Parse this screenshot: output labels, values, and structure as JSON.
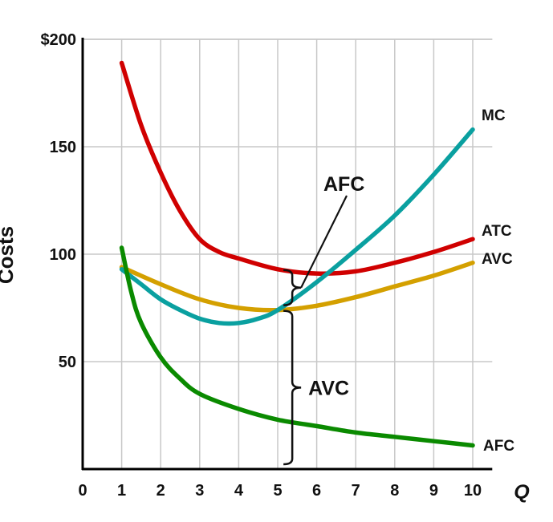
{
  "chart_data": {
    "type": "line",
    "title": "",
    "xlabel": "Q",
    "ylabel": "Costs",
    "xlim": [
      0,
      10.5
    ],
    "ylim": [
      0,
      200
    ],
    "grid": true,
    "x_ticks": [
      0,
      1,
      2,
      3,
      4,
      5,
      6,
      7,
      8,
      9,
      10
    ],
    "x_tick_labels": [
      "0",
      "1",
      "2",
      "3",
      "4",
      "5",
      "6",
      "7",
      "8",
      "9",
      "10"
    ],
    "y_ticks": [
      50,
      100,
      150,
      200
    ],
    "y_tick_labels": [
      "50",
      "100",
      "150",
      "$200"
    ],
    "series": [
      {
        "name": "ATC",
        "color": "#d00000",
        "x": [
          1,
          1.5,
          2,
          2.5,
          3,
          3.5,
          4,
          5,
          6,
          7,
          8,
          9,
          10
        ],
        "y": [
          189,
          160,
          138,
          120,
          107,
          101,
          98,
          93,
          91,
          92,
          96,
          101,
          107
        ]
      },
      {
        "name": "AVC",
        "color": "#d4a000",
        "x": [
          1,
          2,
          3,
          4,
          5,
          6,
          7,
          8,
          9,
          10
        ],
        "y": [
          94,
          86,
          79,
          75,
          74,
          76,
          80,
          85,
          90,
          96
        ]
      },
      {
        "name": "MC",
        "color": "#0aa0a0",
        "x": [
          1,
          1.5,
          2,
          2.5,
          3,
          3.5,
          4,
          4.5,
          5,
          6,
          7,
          8,
          9,
          10
        ],
        "y": [
          93,
          86,
          79,
          74,
          70,
          68,
          68,
          70,
          74,
          87,
          102,
          118,
          137,
          158
        ]
      },
      {
        "name": "AFC",
        "color": "#0a8a00",
        "x": [
          1,
          1.25,
          1.5,
          2,
          2.5,
          3,
          4,
          5,
          6,
          7,
          8,
          9,
          10
        ],
        "y": [
          103,
          82,
          68,
          52,
          42,
          35,
          28,
          23,
          20,
          17,
          15,
          13,
          11
        ]
      }
    ],
    "annotations": [
      {
        "text": "AFC",
        "type": "brace",
        "x": 5.25,
        "y_range": [
          74,
          93
        ]
      },
      {
        "text": "AVC",
        "type": "brace",
        "x": 5.25,
        "y_range": [
          0,
          74
        ]
      }
    ]
  }
}
